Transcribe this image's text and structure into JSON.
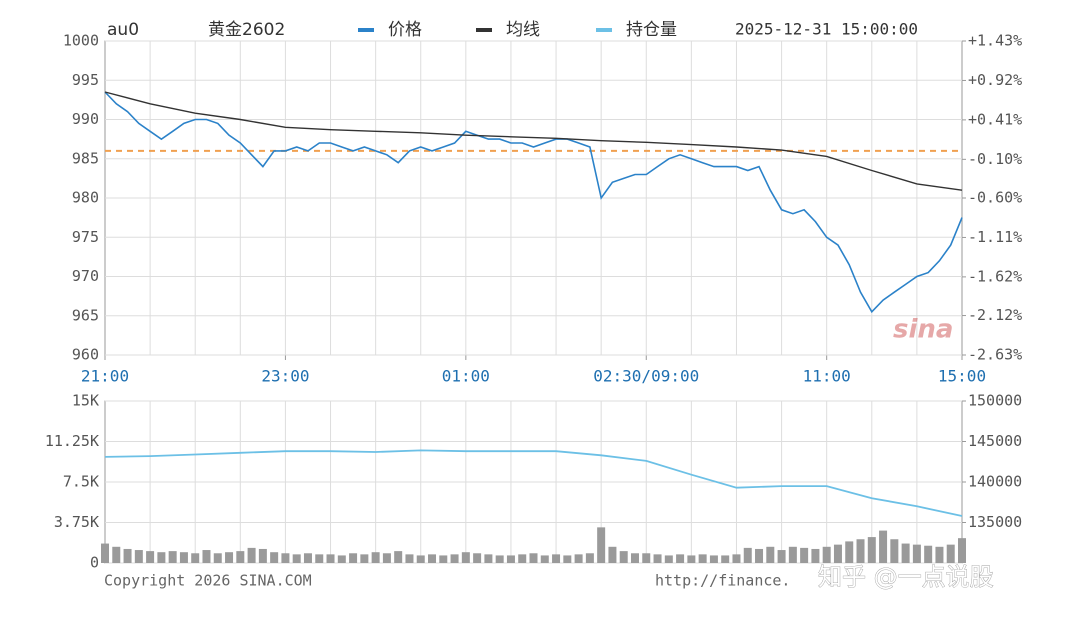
{
  "chart_data": [
    {
      "type": "line",
      "code": "au0",
      "title": "黄金2602",
      "timestamp": "2025-12-31 15:00:00",
      "x": [
        0,
        0.25,
        0.5,
        0.75,
        1,
        1.25,
        1.5,
        1.75,
        2,
        2.25,
        2.5,
        2.75,
        3,
        3.25,
        3.5,
        3.75,
        4,
        4.25,
        4.5,
        4.75,
        5,
        5.25,
        5.5,
        5.75,
        6,
        6.25,
        6.5,
        6.75,
        7,
        7.25,
        7.5,
        7.75,
        8,
        8.25,
        8.5,
        8.75,
        9,
        9.25,
        9.5,
        9.75,
        10,
        10.25,
        10.5,
        10.75,
        11,
        11.25,
        11.5,
        11.75,
        12,
        12.25,
        12.5,
        12.75,
        13,
        13.25,
        13.5,
        13.75,
        14,
        14.25,
        14.5,
        14.75,
        15,
        15.25,
        15.5,
        15.75,
        16,
        16.25,
        16.5,
        16.75,
        17,
        17.25,
        17.5,
        17.75,
        18,
        18.25,
        18.5,
        18.75,
        19
      ],
      "series": [
        {
          "name": "价格",
          "color": "#2b82c9",
          "values": [
            993.5,
            992,
            991,
            989.5,
            988.5,
            987.5,
            988.5,
            989.5,
            990,
            990,
            989.5,
            988,
            987,
            985.5,
            984,
            986,
            986,
            986.5,
            986,
            987,
            987,
            986.5,
            986,
            986.5,
            986,
            985.5,
            984.5,
            986,
            986.5,
            986,
            986.5,
            987,
            988.5,
            988,
            987.5,
            987.5,
            987,
            987,
            986.5,
            987,
            987.5,
            987.5,
            987,
            986.5,
            980,
            982,
            982.5,
            983,
            983,
            984,
            985,
            985.5,
            985,
            984.5,
            984,
            984,
            984,
            983.5,
            984,
            981,
            978.5,
            978,
            978.5,
            977,
            975,
            974,
            971.5,
            968,
            965.5,
            967,
            968,
            969,
            970,
            970.5,
            972,
            974,
            977.5
          ]
        },
        {
          "name": "均线",
          "color": "#333333",
          "x": [
            0,
            1,
            2,
            3,
            4,
            5,
            6,
            7,
            8,
            9,
            10,
            11,
            12,
            13,
            14,
            15,
            16,
            17,
            18,
            19
          ],
          "values": [
            993.5,
            992,
            990.8,
            990,
            989,
            988.7,
            988.5,
            988.3,
            988,
            987.8,
            987.6,
            987.3,
            987.1,
            986.8,
            986.5,
            986.1,
            985.3,
            983.5,
            981.8,
            981
          ]
        }
      ],
      "reference": 986,
      "reference_color": "#f0a050",
      "up_color": "#d42020",
      "down_color": "#1a8a1a",
      "xlim": [
        0,
        19
      ],
      "xticks": [
        {
          "value": 0,
          "label": "21:00"
        },
        {
          "value": 4,
          "label": "23:00"
        },
        {
          "value": 8,
          "label": "01:00"
        },
        {
          "value": 12,
          "label": "02:30/09:00"
        },
        {
          "value": 16,
          "label": "11:00"
        },
        {
          "value": 19,
          "label": "15:00"
        }
      ],
      "ylim": [
        960,
        1000
      ],
      "yticks": [
        960,
        965,
        970,
        975,
        980,
        985,
        990,
        995,
        1000
      ],
      "y2lim": [
        -2.63,
        1.43
      ],
      "y2ticks": [
        {
          "value": -2.63,
          "label": "-2.63%"
        },
        {
          "value": -2.12,
          "label": "-2.12%"
        },
        {
          "value": -1.62,
          "label": "-1.62%"
        },
        {
          "value": -1.11,
          "label": "-1.11%"
        },
        {
          "value": -0.6,
          "label": "-0.60%"
        },
        {
          "value": -0.1,
          "label": "-0.10%"
        },
        {
          "value": 0.41,
          "label": "+0.41%"
        },
        {
          "value": 0.92,
          "label": "+0.92%"
        },
        {
          "value": 1.43,
          "label": "+1.43%"
        }
      ],
      "grid": true,
      "logo": "sina"
    },
    {
      "type": "bar",
      "color": "#9a9a9a",
      "x": [
        0,
        0.25,
        0.5,
        0.75,
        1,
        1.25,
        1.5,
        1.75,
        2,
        2.25,
        2.5,
        2.75,
        3,
        3.25,
        3.5,
        3.75,
        4,
        4.25,
        4.5,
        4.75,
        5,
        5.25,
        5.5,
        5.75,
        6,
        6.25,
        6.5,
        6.75,
        7,
        7.25,
        7.5,
        7.75,
        8,
        8.25,
        8.5,
        8.75,
        9,
        9.25,
        9.5,
        9.75,
        10,
        10.25,
        10.5,
        10.75,
        11,
        11.25,
        11.5,
        11.75,
        12,
        12.25,
        12.5,
        12.75,
        13,
        13.25,
        13.5,
        13.75,
        14,
        14.25,
        14.5,
        14.75,
        15,
        15.25,
        15.5,
        15.75,
        16,
        16.25,
        16.5,
        16.75,
        17,
        17.25,
        17.5,
        17.75,
        18,
        18.25,
        18.5,
        18.75,
        19
      ],
      "values": [
        1800,
        1500,
        1300,
        1200,
        1100,
        1000,
        1100,
        1000,
        900,
        1200,
        900,
        1000,
        1100,
        1400,
        1300,
        1000,
        900,
        800,
        900,
        800,
        800,
        700,
        900,
        800,
        1000,
        900,
        1100,
        800,
        700,
        800,
        700,
        800,
        1000,
        900,
        800,
        700,
        700,
        800,
        900,
        700,
        800,
        700,
        800,
        900,
        3300,
        1500,
        1100,
        900,
        900,
        800,
        700,
        800,
        700,
        800,
        700,
        700,
        800,
        1400,
        1300,
        1500,
        1200,
        1500,
        1400,
        1300,
        1500,
        1700,
        2000,
        2200,
        2400,
        3000,
        2200,
        1800,
        1700,
        1600,
        1500,
        1700,
        2300
      ],
      "series": [
        {
          "name": "持仓量",
          "color": "#6cc0e6",
          "axis": "y2",
          "x": [
            0,
            1,
            2,
            3,
            4,
            5,
            6,
            7,
            8,
            9,
            10,
            11,
            12,
            13,
            14,
            15,
            16,
            17,
            18,
            19
          ],
          "values": [
            143100,
            143200,
            143400,
            143600,
            143800,
            143800,
            143700,
            143900,
            143800,
            143800,
            143800,
            143300,
            142600,
            140900,
            139300,
            139500,
            139500,
            138000,
            137000,
            135800
          ]
        }
      ],
      "xlim": [
        0,
        19
      ],
      "ylim": [
        0,
        15000
      ],
      "yticks": [
        0,
        {
          "value": 3750,
          "label": "3.75K"
        },
        {
          "value": 7500,
          "label": "7.5K"
        },
        {
          "value": 11250,
          "label": "11.25K"
        },
        {
          "value": 15000,
          "label": "15K"
        }
      ],
      "y2lim": [
        130000,
        150000
      ],
      "y2ticks": [
        135000,
        140000,
        145000,
        150000
      ],
      "grid": true
    }
  ],
  "footer": {
    "copyright": "Copyright 2026 SINA.COM",
    "url": "http://finance."
  },
  "watermark": "知乎 @一点说股"
}
